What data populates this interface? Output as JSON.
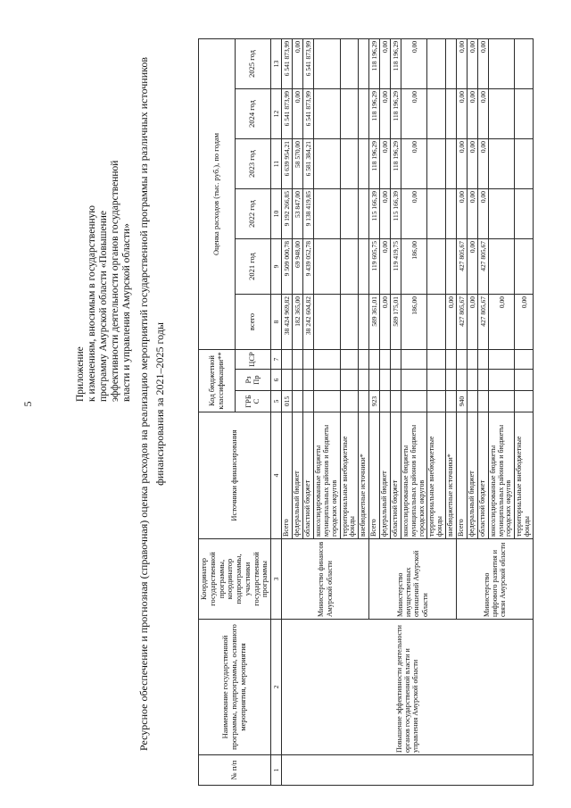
{
  "page": {
    "number": "5"
  },
  "annex": {
    "lines": [
      "Приложение",
      "к изменениям, вносимым в государственную",
      "программу Амурской области «Повышение",
      "эффективности деятельности органов государственной",
      "власти и управления Амурской области»"
    ]
  },
  "title": {
    "line1": "Ресурсное обеспечение и прогнозная (справочная) оценка расходов на реализацию мероприятий  государственной программы из различных источников",
    "line2": "финансирования  за 2021–2025 годы"
  },
  "table": {
    "headers": {
      "col1": "№ п/п",
      "col2": "Наименование государственной программы, подпрограммы, основного мероприятия, мероприятия",
      "col3": "Координатор государственной программы, координатор подпрограммы, участники государственной программы",
      "col4": "Источники финансирования",
      "kbk_group": "Код бюджетной классификации**",
      "grbs": "ГРБС",
      "rzpr": "Рз Пр",
      "csr": "ЦСР",
      "expenses_group": "Оценка расходов (тыс. руб.), по годам",
      "total": "всего",
      "y2021": "2021 год",
      "y2022": "2022 год",
      "y2023": "2023 год",
      "y2024": "2024 год",
      "y2025": "2025 год"
    },
    "numbering": [
      "1",
      "2",
      "3",
      "4",
      "5",
      "6",
      "7",
      "8",
      "9",
      "10",
      "11",
      "12",
      "13"
    ],
    "program": {
      "number": "",
      "name": "Повышение эффективности деятельности органов государственной власти и управления Амурской области"
    },
    "blocks": [
      {
        "coordinator": "Министерство финансов Амурской области",
        "rows": [
          {
            "source": "Всего",
            "grbs": "015",
            "rzpr": "",
            "csr": "",
            "values": [
              "38 424 969,82",
              "9 509 000,78",
              "9 192 266,85",
              "6 639 954,21",
              "6 541 873,99",
              "6 541 873,99"
            ]
          },
          {
            "source": "федеральный бюджет",
            "grbs": "",
            "rzpr": "",
            "csr": "",
            "values": [
              "182 365,00",
              "69 948,00",
              "53 847,00",
              "58 570,00",
              "0,00",
              "0,00"
            ]
          },
          {
            "source": "областной бюджет",
            "grbs": "",
            "rzpr": "",
            "csr": "",
            "values": [
              "38 242 604,82",
              "9 439 052,78",
              "9 138 419,85",
              "6 581 384,21",
              "6 541 873,99",
              "6 541 873,99"
            ]
          },
          {
            "source": "консолидированные бюджеты муниципальных районов и бюджеты городских округов",
            "grbs": "",
            "rzpr": "",
            "csr": "",
            "values": [
              "",
              "",
              "",
              "",
              "",
              ""
            ]
          },
          {
            "source": "территориальные внебюджетные фонды",
            "grbs": "",
            "rzpr": "",
            "csr": "",
            "values": [
              "",
              "",
              "",
              "",
              "",
              ""
            ]
          },
          {
            "source": "внебюджетные источники*",
            "grbs": "",
            "rzpr": "",
            "csr": "",
            "values": [
              "",
              "",
              "",
              "",
              "",
              ""
            ]
          }
        ]
      },
      {
        "coordinator": "Министерство имущественных отношений Амурской области",
        "rows": [
          {
            "source": "Всего",
            "grbs": "923",
            "rzpr": "",
            "csr": "",
            "values": [
              "589 361,01",
              "119 605,75",
              "115 166,39",
              "118 196,29",
              "118 196,29",
              "118 196,29"
            ]
          },
          {
            "source": "федеральный бюджет",
            "grbs": "",
            "rzpr": "",
            "csr": "",
            "values": [
              "0,00",
              "0,00",
              "0,00",
              "0,00",
              "0,00",
              "0,00"
            ]
          },
          {
            "source": "областной бюджет",
            "grbs": "",
            "rzpr": "",
            "csr": "",
            "values": [
              "589 175,01",
              "119 419,75",
              "115 166,39",
              "118 196,29",
              "118 196,29",
              "118 196,29"
            ]
          },
          {
            "source": "консолидированные бюджеты муниципальных районов и бюджеты городских округов",
            "grbs": "",
            "rzpr": "",
            "csr": "",
            "values": [
              "186,00",
              "186,00",
              "0,00",
              "0,00",
              "0,00",
              "0,00"
            ]
          },
          {
            "source": "территориальные внебюджетные фонды",
            "grbs": "",
            "rzpr": "",
            "csr": "",
            "values": [
              "",
              "",
              "",
              "",
              "",
              ""
            ]
          },
          {
            "source": "внебюджетные источники*",
            "grbs": "",
            "rzpr": "",
            "csr": "",
            "values": [
              "0,00",
              "",
              "",
              "",
              "",
              ""
            ]
          }
        ]
      },
      {
        "coordinator": "Министерство цифрового развития и связи Амурской области",
        "rows": [
          {
            "source": "Всего",
            "grbs": "940",
            "rzpr": "",
            "csr": "",
            "values": [
              "427 805,67",
              "427 805,67",
              "0,00",
              "0,00",
              "0,00",
              "0,00"
            ]
          },
          {
            "source": "федеральный бюджет",
            "grbs": "",
            "rzpr": "",
            "csr": "",
            "values": [
              "0,00",
              "0,00",
              "0,00",
              "0,00",
              "0,00",
              "0,00"
            ]
          },
          {
            "source": "областной бюджет",
            "grbs": "",
            "rzpr": "",
            "csr": "",
            "values": [
              "427 805,67",
              "427 805,67",
              "0,00",
              "0,00",
              "0,00",
              "0,00"
            ]
          },
          {
            "source": "консолидированные бюджеты муниципальных районов и бюджеты городских округов",
            "grbs": "",
            "rzpr": "",
            "csr": "",
            "values": [
              "0,00",
              "",
              "",
              "",
              "",
              ""
            ]
          },
          {
            "source": "территориальные внебюджетные фонды",
            "grbs": "",
            "rzpr": "",
            "csr": "",
            "values": [
              "0,00",
              "",
              "",
              "",
              "",
              ""
            ]
          }
        ]
      }
    ]
  }
}
